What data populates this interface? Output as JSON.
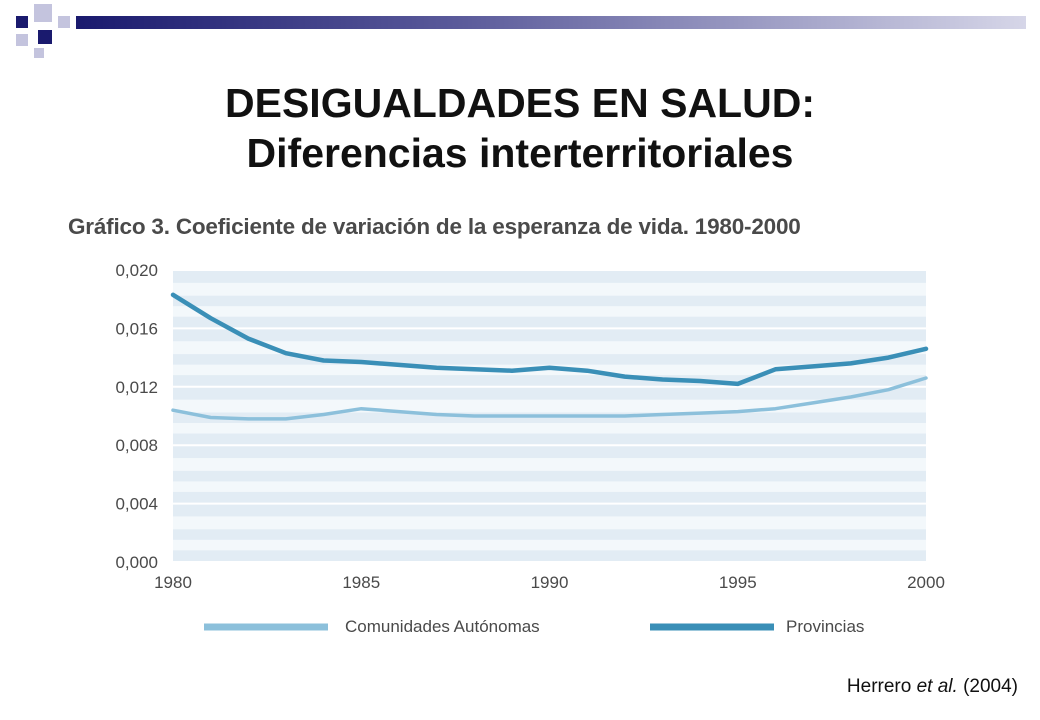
{
  "slide": {
    "title_line1": "DESIGUALDADES EN SALUD:",
    "title_line2": "Diferencias interterritoriales",
    "citation_author": "Herrero ",
    "citation_etal": "et al.",
    "citation_year": " (2004)"
  },
  "colors": {
    "deco_navy": "#1a1a6e",
    "deco_light": "#b8b8d8",
    "band_light": "#e2ecf4",
    "band_stripe": "#f3f8fb",
    "axis_text": "#4a4a4a",
    "series_ccaa": "#8cc0db",
    "series_prov": "#3a8fb7"
  },
  "chart_data": {
    "type": "line",
    "title": "Gráfico 3. Coeficiente de variación de la esperanza de vida. 1980-2000",
    "xlabel": "",
    "ylabel": "",
    "x": [
      1980,
      1981,
      1982,
      1983,
      1984,
      1985,
      1986,
      1987,
      1988,
      1989,
      1990,
      1991,
      1992,
      1993,
      1994,
      1995,
      1996,
      1997,
      1998,
      1999,
      2000
    ],
    "xlim": [
      1980,
      2000
    ],
    "ylim": [
      0,
      0.02
    ],
    "x_ticks": [
      "1980",
      "1985",
      "1990",
      "1995",
      "2000"
    ],
    "y_ticks": [
      "0,000",
      "0,004",
      "0,008",
      "0,012",
      "0,016",
      "0,020"
    ],
    "grid": true,
    "legend_position": "bottom",
    "series": [
      {
        "name": "Comunidades Autónomas",
        "color": "#8cc0db",
        "values": [
          0.0104,
          0.0099,
          0.0098,
          0.0098,
          0.0101,
          0.0105,
          0.0103,
          0.0101,
          0.01,
          0.01,
          0.01,
          0.01,
          0.01,
          0.0101,
          0.0102,
          0.0103,
          0.0105,
          0.0109,
          0.0113,
          0.0118,
          0.0126
        ]
      },
      {
        "name": "Provincias",
        "color": "#3a8fb7",
        "values": [
          0.0183,
          0.0167,
          0.0153,
          0.0143,
          0.0138,
          0.0137,
          0.0135,
          0.0133,
          0.0132,
          0.0131,
          0.0133,
          0.0131,
          0.0127,
          0.0125,
          0.0124,
          0.0122,
          0.0132,
          0.0134,
          0.0136,
          0.014,
          0.0146
        ]
      }
    ]
  }
}
